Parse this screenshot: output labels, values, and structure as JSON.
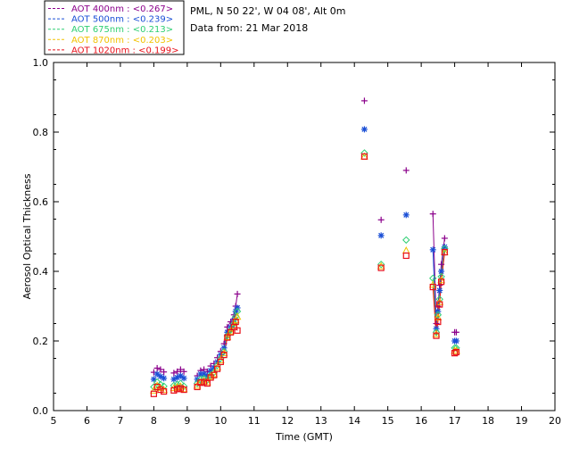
{
  "chart_data": {
    "type": "scatter",
    "title_lines": [
      "PML, N 50 22', W 04 08', Alt 0m",
      "Data from: 21 Mar 2018"
    ],
    "xlabel": "Time (GMT)",
    "ylabel": "Aerosol Optical Thickness",
    "xlim": [
      5,
      20
    ],
    "ylim": [
      0,
      1.0
    ],
    "xticks": [
      "5",
      "6",
      "7",
      "8",
      "9",
      "10",
      "11",
      "12",
      "13",
      "14",
      "15",
      "16",
      "17",
      "18",
      "19",
      "20"
    ],
    "yticks": [
      "0.0",
      "0.2",
      "0.4",
      "0.6",
      "0.8",
      "1.0"
    ],
    "x": [
      8.0,
      8.1,
      8.2,
      8.3,
      8.6,
      8.7,
      8.8,
      8.9,
      9.3,
      9.4,
      9.5,
      9.6,
      9.7,
      9.8,
      9.9,
      10.0,
      10.1,
      10.2,
      10.3,
      10.4,
      10.45,
      10.5,
      14.3,
      14.8,
      15.55,
      16.35,
      16.45,
      16.5,
      16.55,
      16.6,
      16.7,
      17.0,
      17.05
    ],
    "series": [
      {
        "name": "AOT  400nm",
        "legend": "AOT  400nm : <0.267>",
        "color": "#8b008b",
        "marker": "plus",
        "values": [
          0.11,
          0.122,
          0.118,
          0.111,
          0.108,
          0.112,
          0.118,
          0.112,
          0.1,
          0.115,
          0.118,
          0.112,
          0.128,
          0.135,
          0.152,
          0.17,
          0.192,
          0.24,
          0.255,
          0.275,
          0.3,
          0.335,
          0.89,
          0.548,
          0.69,
          0.565,
          0.25,
          0.3,
          0.36,
          0.42,
          0.495,
          0.225,
          0.225
        ]
      },
      {
        "name": "AOT  500nm",
        "legend": "AOT  500nm : <0.239>",
        "color": "#1a4fd6",
        "marker": "star",
        "values": [
          0.09,
          0.105,
          0.098,
          0.093,
          0.09,
          0.095,
          0.1,
          0.093,
          0.09,
          0.105,
          0.105,
          0.1,
          0.115,
          0.123,
          0.14,
          0.16,
          0.18,
          0.225,
          0.24,
          0.26,
          0.285,
          0.295,
          0.808,
          0.503,
          0.562,
          0.462,
          0.235,
          0.285,
          0.345,
          0.4,
          0.47,
          0.2,
          0.2
        ]
      },
      {
        "name": "AOT  675nm",
        "legend": "AOT  675nm : <0.213>",
        "color": "#2fcf73",
        "marker": "diamond",
        "values": [
          0.068,
          0.082,
          0.075,
          0.07,
          0.072,
          0.075,
          0.078,
          0.07,
          0.078,
          0.09,
          0.092,
          0.088,
          0.102,
          0.11,
          0.13,
          0.15,
          0.17,
          0.215,
          0.232,
          0.25,
          0.27,
          0.285,
          0.74,
          0.42,
          0.49,
          0.38,
          0.225,
          0.275,
          0.32,
          0.385,
          0.465,
          0.18,
          0.18
        ]
      },
      {
        "name": "AOT  870nm",
        "legend": "AOT  870nm : <0.203>",
        "color": "#f2c200",
        "marker": "triangle",
        "values": [
          0.058,
          0.072,
          0.065,
          0.06,
          0.065,
          0.068,
          0.07,
          0.062,
          0.072,
          0.082,
          0.085,
          0.082,
          0.098,
          0.105,
          0.125,
          0.145,
          0.165,
          0.212,
          0.228,
          0.245,
          0.26,
          0.27,
          0.73,
          0.415,
          0.46,
          0.362,
          0.22,
          0.268,
          0.312,
          0.375,
          0.455,
          0.172,
          0.172
        ]
      },
      {
        "name": "AOT 1020nm",
        "legend": "AOT 1020nm : <0.199>",
        "color": "#e8101a",
        "marker": "square",
        "values": [
          0.048,
          0.068,
          0.06,
          0.055,
          0.058,
          0.062,
          0.064,
          0.06,
          0.068,
          0.08,
          0.082,
          0.078,
          0.095,
          0.102,
          0.12,
          0.14,
          0.16,
          0.21,
          0.225,
          0.24,
          0.255,
          0.23,
          0.73,
          0.41,
          0.445,
          0.355,
          0.215,
          0.255,
          0.305,
          0.37,
          0.455,
          0.165,
          0.168
        ]
      }
    ],
    "lines_between_indices": [
      [
        16,
        17,
        18,
        19,
        20,
        21
      ],
      [
        25,
        26,
        27,
        28,
        29,
        30
      ]
    ]
  }
}
